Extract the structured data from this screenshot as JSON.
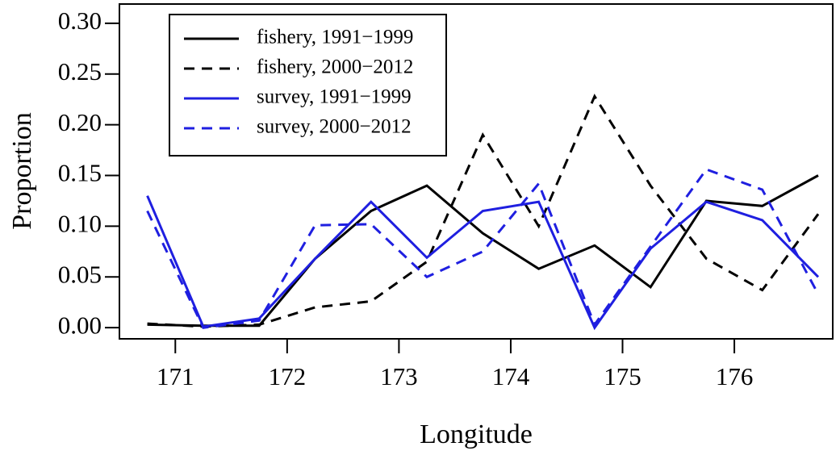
{
  "chart_data": {
    "type": "line",
    "x_label": "Longitude",
    "y_label": "Proportion",
    "x": [
      170.75,
      171.25,
      171.75,
      172.25,
      172.75,
      173.25,
      173.75,
      174.25,
      174.75,
      175.25,
      175.75,
      176.25,
      176.75
    ],
    "series": [
      {
        "name": "fishery, 1991−1999",
        "color": "#000000",
        "dashed": false,
        "values": [
          0.003,
          0.002,
          0.002,
          0.068,
          0.115,
          0.14,
          0.093,
          0.058,
          0.081,
          0.04,
          0.125,
          0.12,
          0.15
        ]
      },
      {
        "name": "fishery, 2000−2012",
        "color": "#000000",
        "dashed": true,
        "values": [
          0.004,
          0.001,
          0.003,
          0.02,
          0.026,
          0.065,
          0.19,
          0.1,
          0.228,
          0.14,
          0.068,
          0.037,
          0.112
        ]
      },
      {
        "name": "survey, 1991−1999",
        "color": "#1f1fe0",
        "dashed": false,
        "values": [
          0.13,
          0.001,
          0.009,
          0.068,
          0.124,
          0.069,
          0.115,
          0.124,
          0.0,
          0.078,
          0.124,
          0.106,
          0.05
        ]
      },
      {
        "name": "survey, 2000−2012",
        "color": "#1f1fe0",
        "dashed": true,
        "values": [
          0.115,
          0.0,
          0.007,
          0.101,
          0.102,
          0.05,
          0.075,
          0.142,
          0.003,
          0.08,
          0.156,
          0.136,
          0.033
        ]
      }
    ],
    "xlim": [
      170.5,
      176.88
    ],
    "ylim": [
      -0.011,
      0.319
    ],
    "xticks": [
      171,
      172,
      173,
      174,
      175,
      176
    ],
    "yticks": [
      {
        "value": 0,
        "label": "0.00"
      },
      {
        "value": 0.05,
        "label": "0.05"
      },
      {
        "value": 0.1,
        "label": "0.10"
      },
      {
        "value": 0.15,
        "label": "0.15"
      },
      {
        "value": 0.2,
        "label": "0.20"
      },
      {
        "value": 0.25,
        "label": "0.25"
      },
      {
        "value": 0.3,
        "label": "0.30"
      }
    ],
    "legend": "top-left",
    "grid": false
  }
}
